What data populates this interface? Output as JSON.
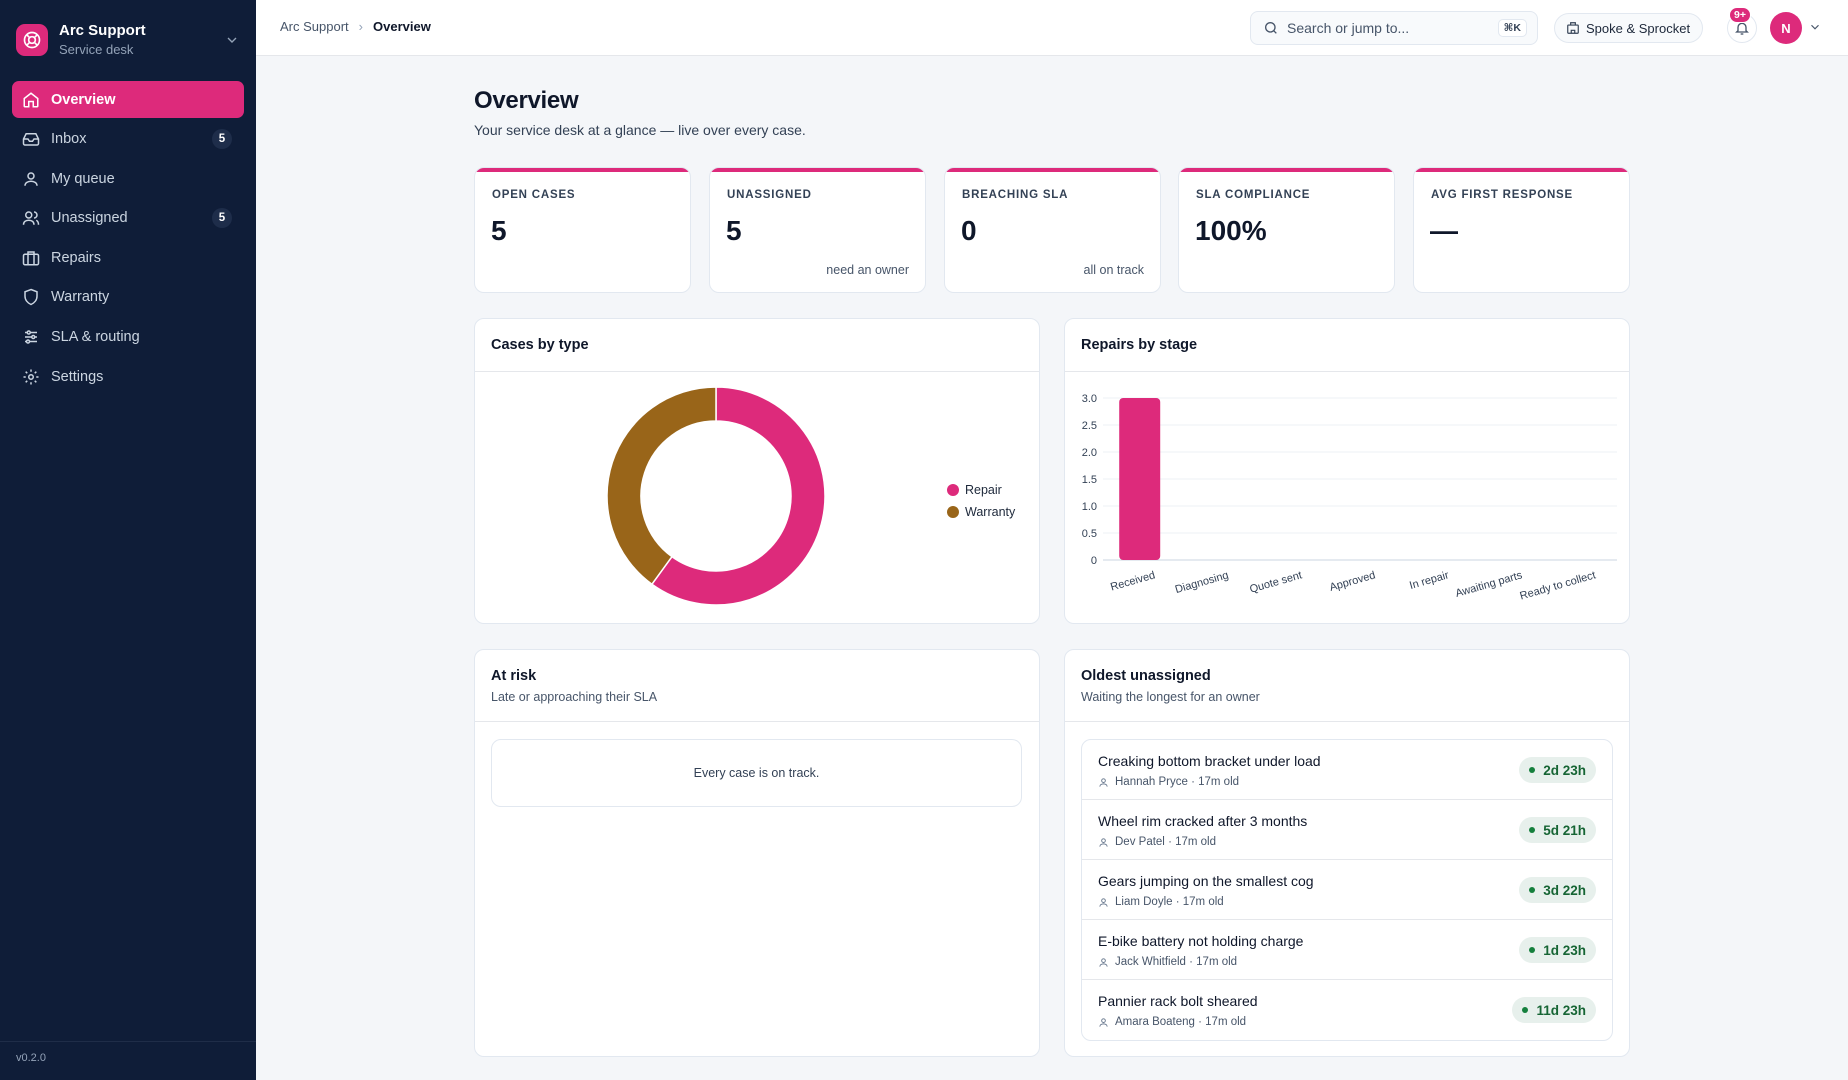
{
  "app": {
    "title": "Arc Support",
    "subtitle": "Service desk",
    "version": "v0.2.0",
    "accent": "#dd2a7b"
  },
  "sidebar": {
    "items": [
      {
        "label": "Overview",
        "icon": "home-icon",
        "active": true
      },
      {
        "label": "Inbox",
        "icon": "inbox-icon",
        "badge": "5"
      },
      {
        "label": "My queue",
        "icon": "user-icon"
      },
      {
        "label": "Unassigned",
        "icon": "users-icon",
        "badge": "5"
      },
      {
        "label": "Repairs",
        "icon": "briefcase-icon"
      },
      {
        "label": "Warranty",
        "icon": "shield-icon"
      },
      {
        "label": "SLA & routing",
        "icon": "sliders-icon"
      },
      {
        "label": "Settings",
        "icon": "gear-icon"
      }
    ]
  },
  "header": {
    "breadcrumb": [
      "Arc Support",
      "Overview"
    ],
    "search_placeholder": "Search or jump to...",
    "search_shortcut": "⌘K",
    "org_name": "Spoke & Sprocket",
    "notifications_badge": "9+",
    "avatar_initial": "N"
  },
  "page": {
    "title": "Overview",
    "subtitle": "Your service desk at a glance — live over every case."
  },
  "stats": [
    {
      "label": "OPEN CASES",
      "value": "5",
      "note": ""
    },
    {
      "label": "UNASSIGNED",
      "value": "5",
      "note": "need an owner"
    },
    {
      "label": "BREACHING SLA",
      "value": "0",
      "note": "all on track"
    },
    {
      "label": "SLA COMPLIANCE",
      "value": "100%",
      "note": ""
    },
    {
      "label": "AVG FIRST RESPONSE",
      "value": "—",
      "note": ""
    }
  ],
  "cases_by_type": {
    "title": "Cases by type"
  },
  "repairs_by_stage": {
    "title": "Repairs by stage"
  },
  "chart_data": [
    {
      "type": "pie",
      "title": "Cases by type",
      "categories": [
        "Repair",
        "Warranty"
      ],
      "values": [
        3,
        2
      ],
      "colors": [
        "#dd2a7b",
        "#996519"
      ],
      "donut": true,
      "legend": "right"
    },
    {
      "type": "bar",
      "title": "Repairs by stage",
      "categories": [
        "Received",
        "Diagnosing",
        "Quote sent",
        "Approved",
        "In repair",
        "Awaiting parts",
        "Ready to collect"
      ],
      "values": [
        3,
        0,
        0,
        0,
        0,
        0,
        0
      ],
      "ylim": [
        0,
        3
      ],
      "yticks": [
        "0",
        "0.5",
        "1.0",
        "1.5",
        "2.0",
        "2.5",
        "3.0"
      ],
      "color": "#dd2a7b",
      "grid": true
    }
  ],
  "at_risk": {
    "title": "At risk",
    "subtitle": "Late or approaching their SLA",
    "empty_text": "Every case is on track."
  },
  "oldest_unassigned": {
    "title": "Oldest unassigned",
    "subtitle": "Waiting the longest for an owner",
    "rows": [
      {
        "title": "Creaking bottom bracket under load",
        "person": "Hannah Pryce",
        "age": "· 17m old",
        "time": "2d 23h"
      },
      {
        "title": "Wheel rim cracked after 3 months",
        "person": "Dev Patel",
        "age": "· 17m old",
        "time": "5d 21h"
      },
      {
        "title": "Gears jumping on the smallest cog",
        "person": "Liam Doyle",
        "age": "· 17m old",
        "time": "3d 22h"
      },
      {
        "title": "E-bike battery not holding charge",
        "person": "Jack Whitfield",
        "age": "· 17m old",
        "time": "1d 23h"
      },
      {
        "title": "Pannier rack bolt sheared",
        "person": "Amara Boateng",
        "age": "· 17m old",
        "time": "11d 23h"
      }
    ]
  }
}
